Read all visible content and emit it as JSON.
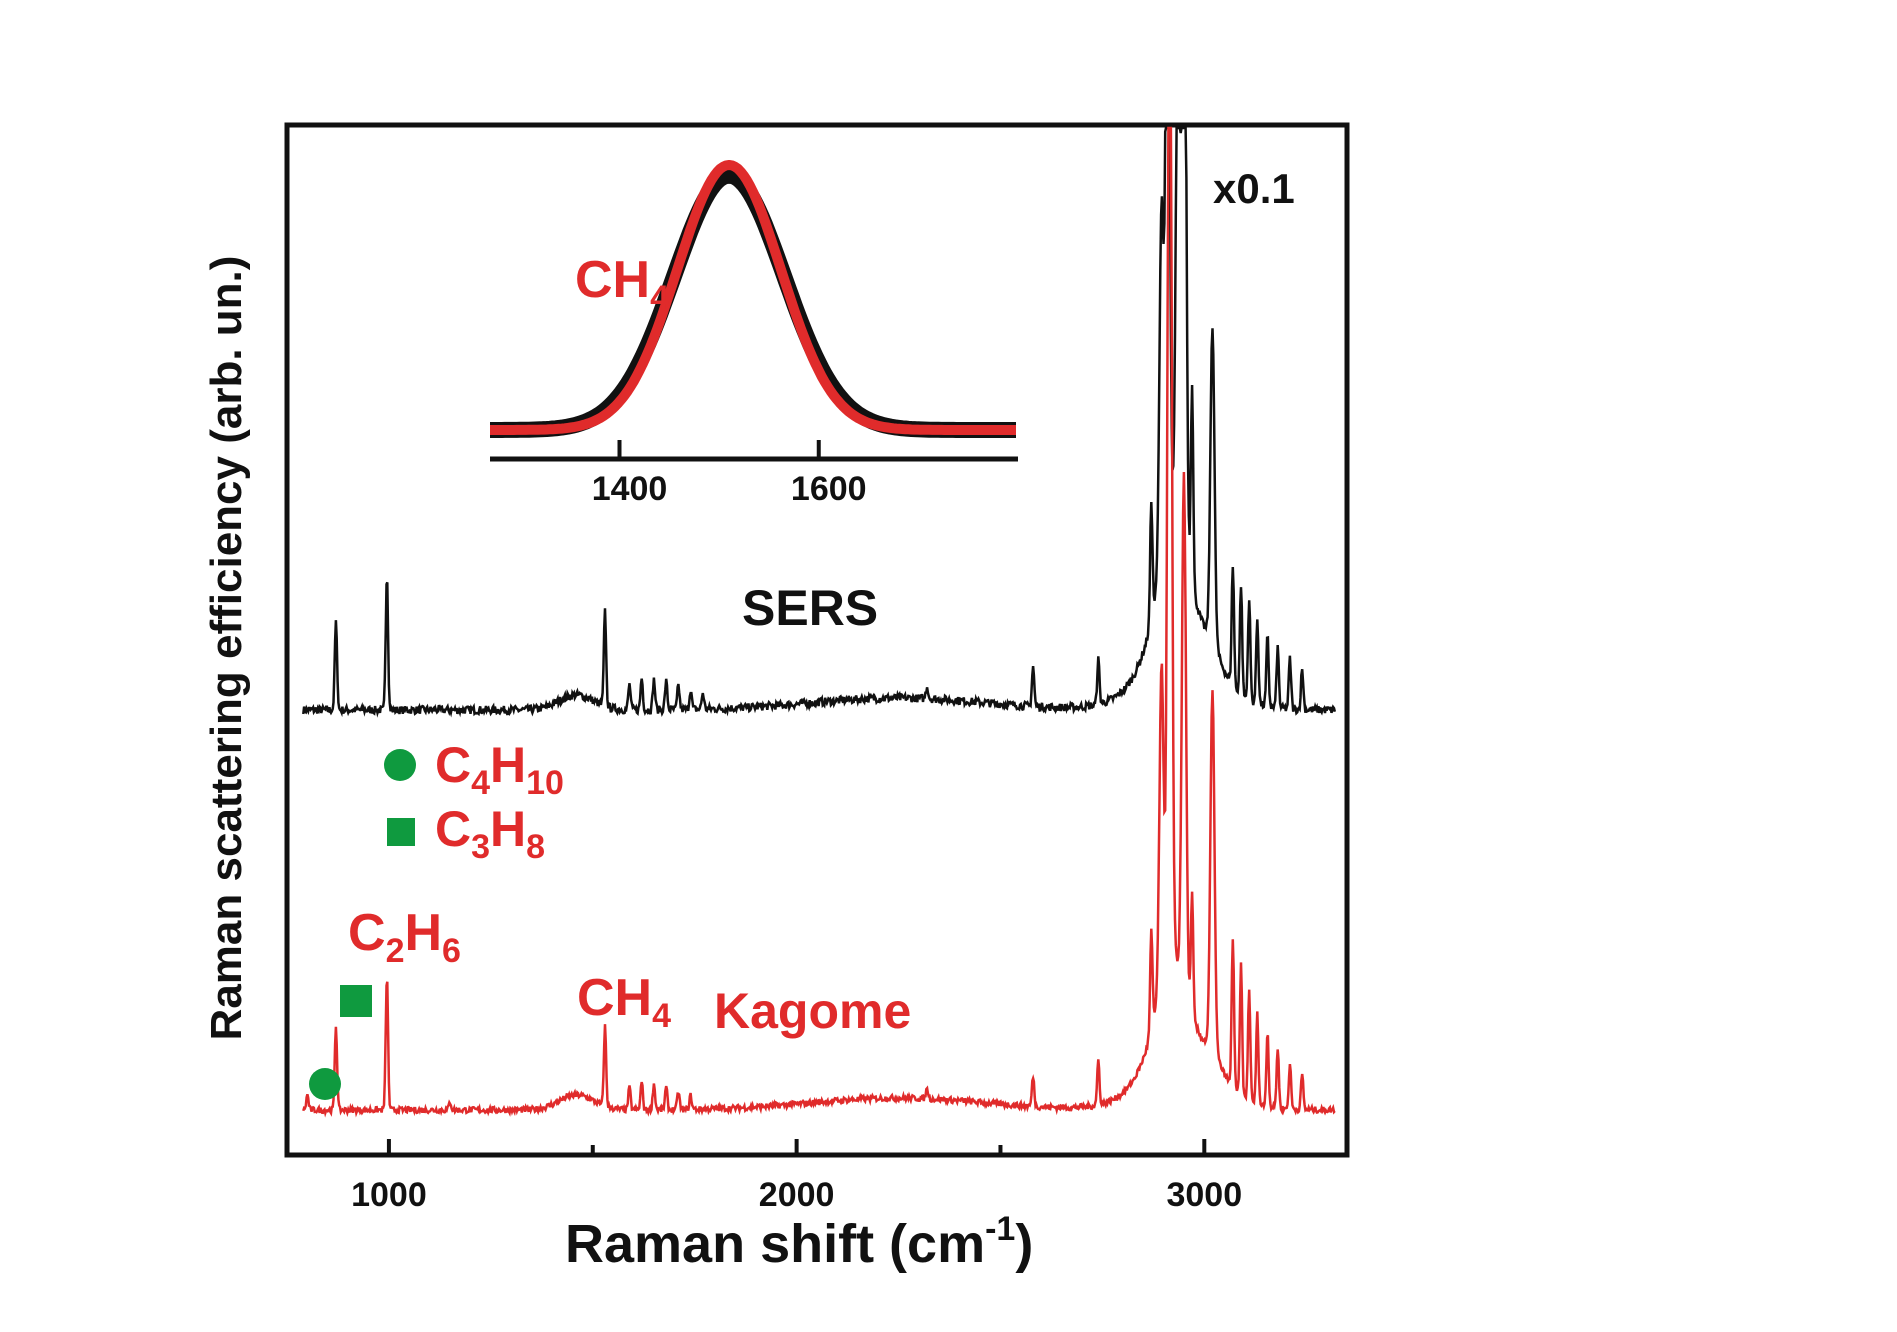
{
  "chart_data": {
    "type": "line",
    "xlabel": {
      "main": "Raman shift (cm",
      "sup": "-1",
      "close": ")"
    },
    "ylabel": "Raman scattering efficiency (arb. un.)",
    "xlim": [
      750,
      3350
    ],
    "x_ticks": [
      1000,
      2000,
      3000
    ],
    "x_ticks_minor": [
      1500,
      2500
    ],
    "scale_note": "x0.1",
    "series": [
      {
        "name": "SERS",
        "color": "#111111",
        "baseline": 0.42,
        "noise": 0.004,
        "peaks": [
          {
            "x": 870,
            "h": 0.088
          },
          {
            "x": 995,
            "h": 0.138
          },
          {
            "x": 1530,
            "h": 0.095
          },
          {
            "x": 1590,
            "h": 0.025
          },
          {
            "x": 1620,
            "h": 0.032
          },
          {
            "x": 1650,
            "h": 0.03
          },
          {
            "x": 1680,
            "h": 0.028
          },
          {
            "x": 1710,
            "h": 0.024
          },
          {
            "x": 1740,
            "h": 0.02
          },
          {
            "x": 1770,
            "h": 0.016
          },
          {
            "x": 2320,
            "h": 0.012
          },
          {
            "x": 2580,
            "h": 0.04
          },
          {
            "x": 2740,
            "h": 0.045
          },
          {
            "x": 2870,
            "h": 0.12
          },
          {
            "x": 2895,
            "h": 0.35
          },
          {
            "x": 2910,
            "h": 0.7
          },
          {
            "x": 2935,
            "h": 0.5
          },
          {
            "x": 2950,
            "h": 0.76
          },
          {
            "x": 2970,
            "h": 0.2
          },
          {
            "x": 3020,
            "h": 0.31
          },
          {
            "x": 3070,
            "h": 0.12
          },
          {
            "x": 3090,
            "h": 0.11
          },
          {
            "x": 3110,
            "h": 0.1
          },
          {
            "x": 3130,
            "h": 0.085
          },
          {
            "x": 3155,
            "h": 0.07
          },
          {
            "x": 3180,
            "h": 0.06
          },
          {
            "x": 3210,
            "h": 0.05
          },
          {
            "x": 3240,
            "h": 0.04
          }
        ]
      },
      {
        "name": "Kagome",
        "color": "#e02b2b",
        "baseline": 0.02,
        "noise": 0.003,
        "peaks": [
          {
            "x": 800,
            "h": 0.015
          },
          {
            "x": 870,
            "h": 0.085
          },
          {
            "x": 995,
            "h": 0.135
          },
          {
            "x": 1150,
            "h": 0.008
          },
          {
            "x": 1530,
            "h": 0.08
          },
          {
            "x": 1590,
            "h": 0.022
          },
          {
            "x": 1620,
            "h": 0.028
          },
          {
            "x": 1650,
            "h": 0.026
          },
          {
            "x": 1680,
            "h": 0.022
          },
          {
            "x": 1710,
            "h": 0.018
          },
          {
            "x": 1740,
            "h": 0.014
          },
          {
            "x": 2320,
            "h": 0.01
          },
          {
            "x": 2580,
            "h": 0.03
          },
          {
            "x": 2740,
            "h": 0.045
          },
          {
            "x": 2870,
            "h": 0.1
          },
          {
            "x": 2895,
            "h": 0.31
          },
          {
            "x": 2915,
            "h": 1.05
          },
          {
            "x": 2950,
            "h": 0.5
          },
          {
            "x": 2970,
            "h": 0.12
          },
          {
            "x": 3020,
            "h": 0.35
          },
          {
            "x": 3070,
            "h": 0.15
          },
          {
            "x": 3090,
            "h": 0.13
          },
          {
            "x": 3110,
            "h": 0.11
          },
          {
            "x": 3130,
            "h": 0.09
          },
          {
            "x": 3155,
            "h": 0.075
          },
          {
            "x": 3180,
            "h": 0.06
          },
          {
            "x": 3210,
            "h": 0.045
          },
          {
            "x": 3240,
            "h": 0.035
          }
        ]
      }
    ],
    "labels": {
      "sers": "SERS",
      "kagome": "Kagome",
      "ch4": {
        "base": "CH",
        "sub": "4"
      },
      "c2h6": {
        "c": "C",
        "c_sub": "2",
        "h": "H",
        "h_sub": "6"
      },
      "c3h8": {
        "c": "C",
        "c_sub": "3",
        "h": "H",
        "h_sub": "8"
      },
      "c4h10": {
        "c": "C",
        "c_sub": "4",
        "h": "H",
        "h_sub": "10"
      }
    },
    "markers": {
      "circle_color": "#0f9a3f",
      "square_color": "#0f9a3f"
    },
    "inset": {
      "type": "line",
      "label": {
        "base": "CH",
        "sub": "4"
      },
      "x_ticks": [
        1400,
        1600
      ],
      "xlim": [
        1270,
        1800
      ],
      "center": 1510,
      "sigma": 52,
      "series": [
        {
          "name": "SERS",
          "color": "#111111"
        },
        {
          "name": "Kagome",
          "color": "#e02b2b"
        }
      ]
    }
  }
}
